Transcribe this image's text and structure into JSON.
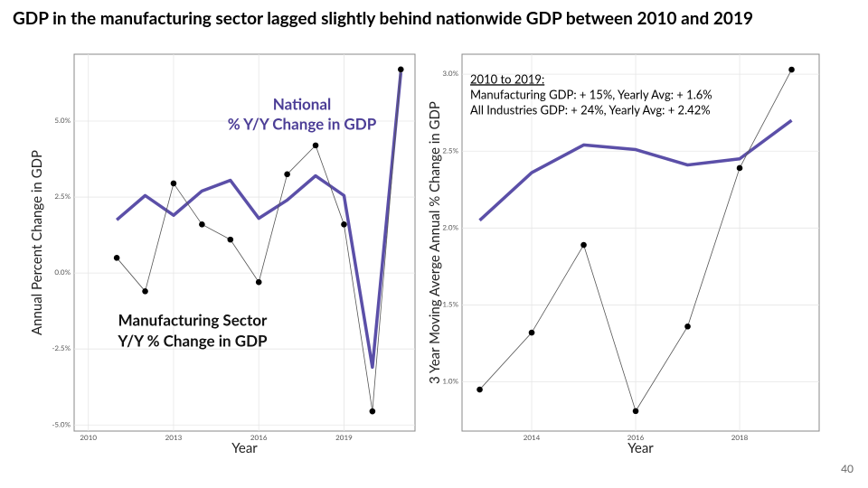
{
  "title": "GDP in the manufacturing sector lagged slightly behind nationwide GDP between 2010 and 2019",
  "page_number": 40,
  "chart_data": [
    {
      "type": "line",
      "x": [
        2011,
        2012,
        2013,
        2014,
        2015,
        2016,
        2017,
        2018,
        2019,
        2020,
        2021
      ],
      "series": [
        {
          "color": "#5b4fa8",
          "values": [
            1.75,
            2.55,
            1.9,
            2.7,
            3.05,
            1.8,
            2.4,
            3.2,
            2.55,
            -3.1,
            6.6
          ]
        },
        {
          "color": "#000000",
          "markers": true,
          "values": [
            0.5,
            -0.6,
            2.95,
            1.6,
            1.1,
            -0.3,
            3.25,
            4.2,
            1.6,
            -4.55,
            6.7
          ]
        }
      ],
      "xlim": [
        2009.5,
        2021.5
      ],
      "xticks": [
        2010,
        2013,
        2016,
        2019
      ],
      "ylim": [
        -5.2,
        7.2
      ],
      "yticks": [
        {
          "value": -5,
          "label": "-5.0%"
        },
        {
          "value": -2.5,
          "label": "-2.5%"
        },
        {
          "value": 0,
          "label": "0.0%"
        },
        {
          "value": 2.5,
          "label": "2.5%"
        },
        {
          "value": 5,
          "label": "5.0%"
        }
      ],
      "grid": true,
      "x_label": "Year",
      "y_label": "Annual Percent Change in GDP",
      "annotations": [
        [
          "National",
          "% Y/Y Change in GDP"
        ],
        [
          "Manufacturing Sector",
          "Y/Y % Change in GDP"
        ]
      ]
    },
    {
      "type": "line",
      "x": [
        2013,
        2014,
        2015,
        2016,
        2017,
        2018,
        2019
      ],
      "series": [
        {
          "color": "#5b4fa8",
          "values": [
            2.05,
            2.36,
            2.54,
            2.51,
            2.41,
            2.45,
            2.7
          ]
        },
        {
          "color": "#000000",
          "markers": true,
          "values": [
            0.95,
            1.32,
            1.89,
            0.81,
            1.36,
            2.39,
            3.03
          ]
        }
      ],
      "xlim": [
        2012.66,
        2019.53
      ],
      "xticks": [
        2014,
        2016,
        2018
      ],
      "ylim": [
        0.68,
        3.13
      ],
      "yticks": [
        {
          "value": 1,
          "label": "1.0%"
        },
        {
          "value": 1.5,
          "label": "1.5%"
        },
        {
          "value": 2,
          "label": "2.0%"
        },
        {
          "value": 2.5,
          "label": "2.5%"
        },
        {
          "value": 3,
          "label": "3.0%"
        }
      ],
      "grid": true,
      "x_label": "Year",
      "y_label": "3 Year Moving Averge Annual % Change in GDP",
      "annotations": [
        [
          "2010 to 2019:",
          "Manufacturing GDP:  + 15%, Yearly Avg: + 1.6%",
          "All Industries GDP: + 24%, Yearly Avg: + 2.42%"
        ]
      ]
    }
  ]
}
